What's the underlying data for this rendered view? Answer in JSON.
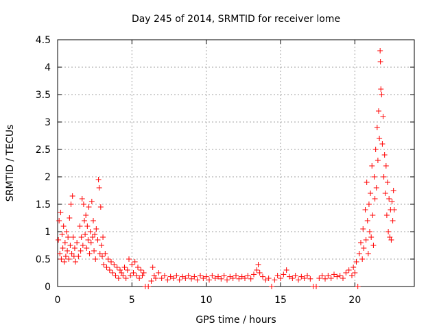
{
  "chart_data": {
    "type": "scatter",
    "title": "Day 245 of 2014, SRMTID for receiver lome",
    "xlabel": "GPS time / hours",
    "ylabel": "SRMTID / TECUs",
    "xlim": [
      0,
      24
    ],
    "ylim": [
      0,
      4.5
    ],
    "xticks": [
      0,
      5,
      10,
      15,
      20
    ],
    "xtick_labels": [
      "0",
      "5",
      "10",
      "15",
      "20"
    ],
    "yticks": [
      0,
      0.5,
      1,
      1.5,
      2,
      2.5,
      3,
      3.5,
      4,
      4.5
    ],
    "ytick_labels": [
      "0",
      "0.5",
      "1",
      "1.5",
      "2",
      "2.5",
      "3",
      "3.5",
      "4",
      "4.5"
    ],
    "grid": true,
    "marker": "+",
    "color": "#ff0000",
    "series": [
      {
        "name": "SRMTID",
        "points": [
          [
            0.05,
            0.85
          ],
          [
            0.1,
            1.2
          ],
          [
            0.15,
            0.6
          ],
          [
            0.2,
            1.35
          ],
          [
            0.25,
            0.5
          ],
          [
            0.3,
            0.95
          ],
          [
            0.35,
            0.7
          ],
          [
            0.4,
            1.1
          ],
          [
            0.45,
            0.45
          ],
          [
            0.5,
            0.8
          ],
          [
            0.55,
            0.55
          ],
          [
            0.6,
            1.0
          ],
          [
            0.65,
            0.65
          ],
          [
            0.7,
            0.9
          ],
          [
            0.75,
            0.5
          ],
          [
            0.8,
            1.25
          ],
          [
            0.85,
            0.75
          ],
          [
            0.9,
            1.5
          ],
          [
            0.95,
            0.6
          ],
          [
            1.0,
            1.65
          ],
          [
            1.05,
            0.9
          ],
          [
            1.1,
            0.55
          ],
          [
            1.15,
            0.7
          ],
          [
            1.2,
            0.45
          ],
          [
            1.3,
            0.8
          ],
          [
            1.4,
            0.55
          ],
          [
            1.5,
            1.1
          ],
          [
            1.55,
            0.65
          ],
          [
            1.6,
            0.9
          ],
          [
            1.65,
            1.6
          ],
          [
            1.7,
            0.75
          ],
          [
            1.75,
            1.5
          ],
          [
            1.8,
            1.2
          ],
          [
            1.85,
            0.95
          ],
          [
            1.9,
            1.3
          ],
          [
            1.95,
            0.7
          ],
          [
            2.0,
            1.1
          ],
          [
            2.05,
            0.85
          ],
          [
            2.1,
            1.45
          ],
          [
            2.15,
            0.6
          ],
          [
            2.2,
            1.0
          ],
          [
            2.25,
            0.8
          ],
          [
            2.3,
            1.55
          ],
          [
            2.35,
            0.9
          ],
          [
            2.4,
            1.2
          ],
          [
            2.45,
            0.65
          ],
          [
            2.5,
            0.95
          ],
          [
            2.55,
            0.5
          ],
          [
            2.6,
            1.05
          ],
          [
            2.7,
            0.85
          ],
          [
            2.75,
            1.95
          ],
          [
            2.8,
            1.8
          ],
          [
            2.85,
            0.6
          ],
          [
            2.9,
            1.45
          ],
          [
            2.95,
            0.75
          ],
          [
            3.0,
            0.55
          ],
          [
            3.05,
            0.9
          ],
          [
            3.1,
            0.4
          ],
          [
            3.2,
            0.6
          ],
          [
            3.3,
            0.35
          ],
          [
            3.4,
            0.5
          ],
          [
            3.5,
            0.3
          ],
          [
            3.6,
            0.45
          ],
          [
            3.7,
            0.25
          ],
          [
            3.8,
            0.4
          ],
          [
            3.9,
            0.2
          ],
          [
            4.0,
            0.35
          ],
          [
            4.1,
            0.15
          ],
          [
            4.2,
            0.3
          ],
          [
            4.3,
            0.25
          ],
          [
            4.4,
            0.2
          ],
          [
            4.5,
            0.35
          ],
          [
            4.6,
            0.15
          ],
          [
            4.7,
            0.3
          ],
          [
            4.8,
            0.5
          ],
          [
            4.9,
            0.2
          ],
          [
            5.0,
            0.4
          ],
          [
            5.1,
            0.25
          ],
          [
            5.2,
            0.45
          ],
          [
            5.3,
            0.2
          ],
          [
            5.4,
            0.35
          ],
          [
            5.5,
            0.15
          ],
          [
            5.6,
            0.3
          ],
          [
            5.7,
            0.2
          ],
          [
            5.8,
            0.25
          ],
          [
            5.9,
            0.0
          ],
          [
            6.1,
            0.0
          ],
          [
            6.3,
            0.1
          ],
          [
            6.4,
            0.35
          ],
          [
            6.5,
            0.2
          ],
          [
            6.6,
            0.15
          ],
          [
            6.8,
            0.25
          ],
          [
            7.0,
            0.15
          ],
          [
            7.2,
            0.2
          ],
          [
            7.4,
            0.12
          ],
          [
            7.6,
            0.18
          ],
          [
            7.8,
            0.15
          ],
          [
            8.0,
            0.2
          ],
          [
            8.2,
            0.12
          ],
          [
            8.4,
            0.18
          ],
          [
            8.6,
            0.15
          ],
          [
            8.8,
            0.2
          ],
          [
            9.0,
            0.14
          ],
          [
            9.2,
            0.18
          ],
          [
            9.4,
            0.12
          ],
          [
            9.6,
            0.2
          ],
          [
            9.8,
            0.15
          ],
          [
            10.0,
            0.18
          ],
          [
            10.2,
            0.12
          ],
          [
            10.4,
            0.2
          ],
          [
            10.6,
            0.15
          ],
          [
            10.8,
            0.18
          ],
          [
            11.0,
            0.14
          ],
          [
            11.2,
            0.2
          ],
          [
            11.4,
            0.12
          ],
          [
            11.6,
            0.18
          ],
          [
            11.8,
            0.15
          ],
          [
            12.0,
            0.2
          ],
          [
            12.2,
            0.14
          ],
          [
            12.4,
            0.18
          ],
          [
            12.6,
            0.15
          ],
          [
            12.8,
            0.2
          ],
          [
            13.0,
            0.14
          ],
          [
            13.2,
            0.22
          ],
          [
            13.4,
            0.3
          ],
          [
            13.5,
            0.4
          ],
          [
            13.6,
            0.25
          ],
          [
            13.8,
            0.18
          ],
          [
            14.0,
            0.12
          ],
          [
            14.2,
            0.15
          ],
          [
            14.4,
            0.0
          ],
          [
            14.6,
            0.12
          ],
          [
            14.8,
            0.2
          ],
          [
            15.0,
            0.15
          ],
          [
            15.2,
            0.22
          ],
          [
            15.4,
            0.3
          ],
          [
            15.6,
            0.18
          ],
          [
            15.8,
            0.15
          ],
          [
            16.0,
            0.2
          ],
          [
            16.2,
            0.12
          ],
          [
            16.4,
            0.18
          ],
          [
            16.6,
            0.15
          ],
          [
            16.8,
            0.2
          ],
          [
            17.0,
            0.14
          ],
          [
            17.2,
            0.0
          ],
          [
            17.4,
            0.0
          ],
          [
            17.6,
            0.15
          ],
          [
            17.8,
            0.2
          ],
          [
            18.0,
            0.14
          ],
          [
            18.2,
            0.2
          ],
          [
            18.4,
            0.15
          ],
          [
            18.6,
            0.22
          ],
          [
            18.8,
            0.18
          ],
          [
            19.0,
            0.2
          ],
          [
            19.2,
            0.15
          ],
          [
            19.4,
            0.25
          ],
          [
            19.6,
            0.3
          ],
          [
            19.8,
            0.2
          ],
          [
            19.9,
            0.35
          ],
          [
            20.0,
            0.25
          ],
          [
            20.1,
            0.45
          ],
          [
            20.2,
            0.0
          ],
          [
            20.3,
            0.6
          ],
          [
            20.4,
            0.8
          ],
          [
            20.5,
            0.5
          ],
          [
            20.55,
            1.05
          ],
          [
            20.6,
            0.7
          ],
          [
            20.7,
            1.4
          ],
          [
            20.75,
            0.85
          ],
          [
            20.8,
            1.9
          ],
          [
            20.85,
            1.2
          ],
          [
            20.9,
            0.6
          ],
          [
            20.95,
            1.5
          ],
          [
            21.0,
            1.0
          ],
          [
            21.05,
            1.7
          ],
          [
            21.1,
            0.9
          ],
          [
            21.15,
            2.2
          ],
          [
            21.2,
            1.3
          ],
          [
            21.25,
            0.75
          ],
          [
            21.3,
            2.0
          ],
          [
            21.35,
            1.6
          ],
          [
            21.4,
            2.5
          ],
          [
            21.45,
            1.8
          ],
          [
            21.5,
            2.9
          ],
          [
            21.55,
            2.3
          ],
          [
            21.6,
            3.2
          ],
          [
            21.65,
            2.7
          ],
          [
            21.7,
            4.3
          ],
          [
            21.72,
            4.1
          ],
          [
            21.75,
            3.6
          ],
          [
            21.8,
            3.5
          ],
          [
            21.85,
            2.6
          ],
          [
            21.9,
            3.1
          ],
          [
            21.95,
            2.0
          ],
          [
            22.0,
            2.4
          ],
          [
            22.05,
            1.7
          ],
          [
            22.1,
            2.2
          ],
          [
            22.15,
            1.3
          ],
          [
            22.2,
            1.9
          ],
          [
            22.25,
            1.0
          ],
          [
            22.3,
            1.6
          ],
          [
            22.35,
            0.9
          ],
          [
            22.4,
            1.4
          ],
          [
            22.45,
            0.85
          ],
          [
            22.5,
            1.55
          ],
          [
            22.55,
            1.2
          ],
          [
            22.6,
            1.75
          ],
          [
            22.65,
            1.4
          ]
        ]
      }
    ]
  }
}
